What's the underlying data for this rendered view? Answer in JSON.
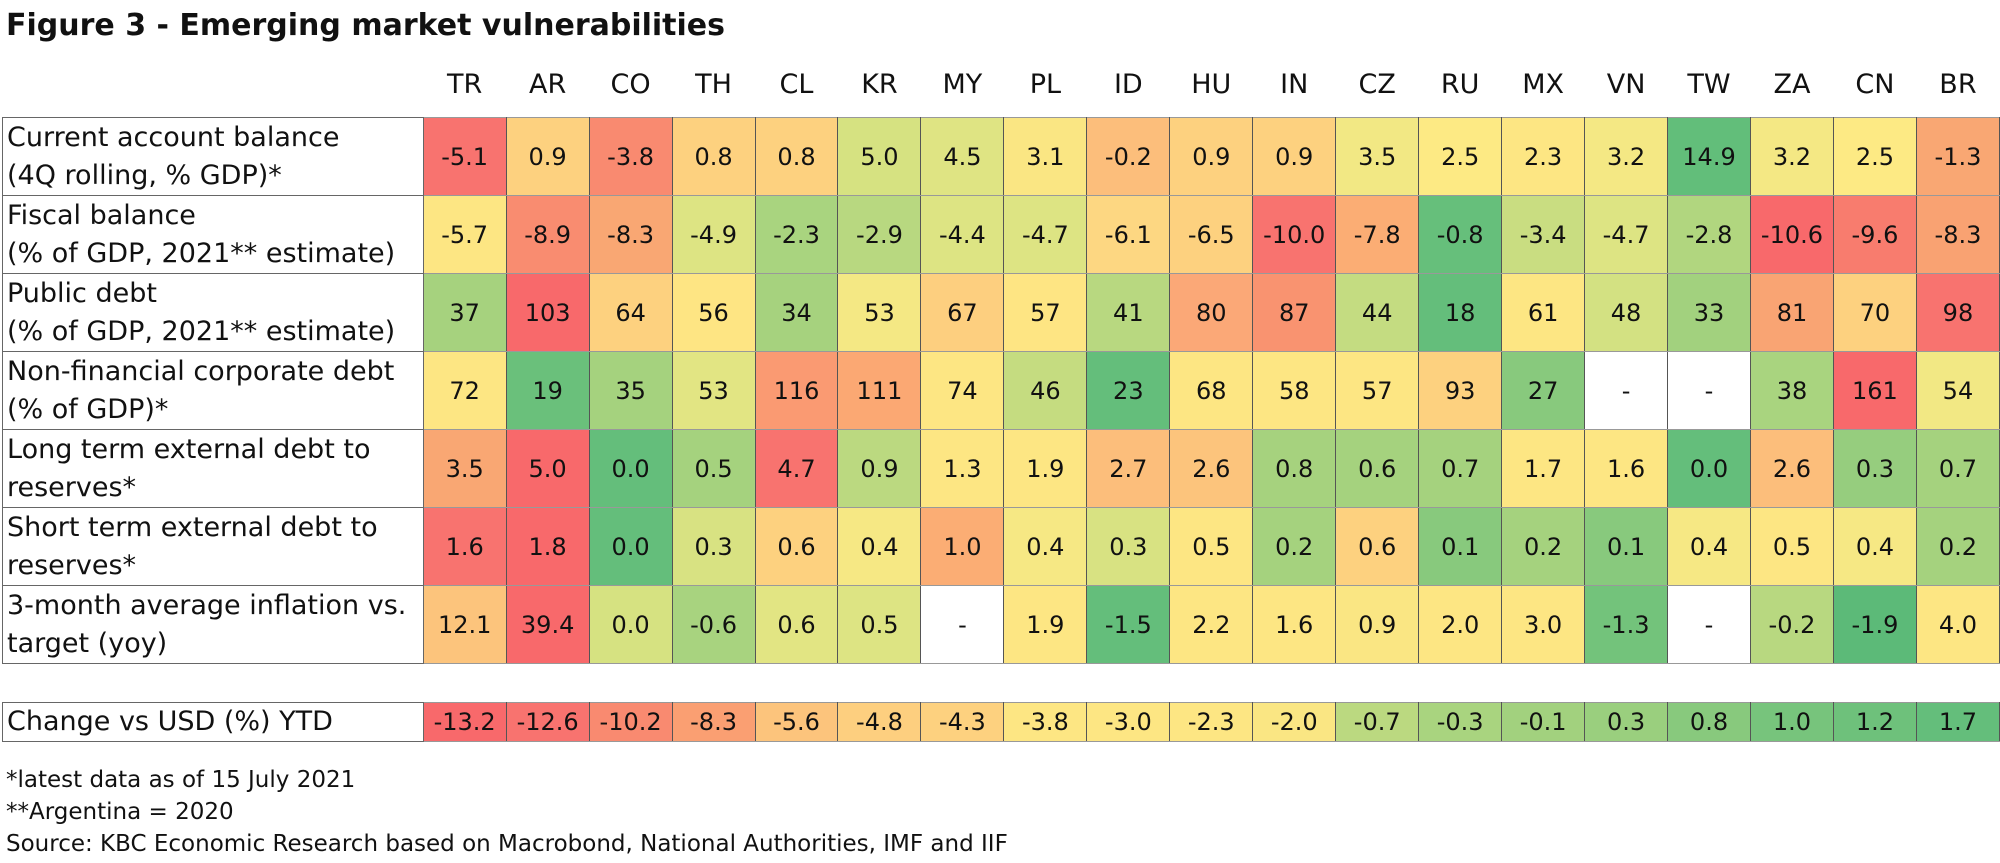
{
  "title": "Figure 3 - Emerging market vulnerabilities",
  "chart_data": {
    "type": "heatmap",
    "title": "Figure 3 - Emerging market vulnerabilities",
    "columns": [
      "TR",
      "AR",
      "CO",
      "TH",
      "CL",
      "KR",
      "MY",
      "PL",
      "ID",
      "HU",
      "IN",
      "CZ",
      "RU",
      "MX",
      "VN",
      "TW",
      "ZA",
      "CN",
      "BR"
    ],
    "rows": [
      {
        "label_1": "Current account balance",
        "label_2": "(4Q rolling, % GDP)*",
        "values": [
          "-5.1",
          "0.9",
          "-3.8",
          "0.8",
          "0.8",
          "5.0",
          "4.5",
          "3.1",
          "-0.2",
          "0.9",
          "0.9",
          "3.5",
          "2.5",
          "2.3",
          "3.2",
          "14.9",
          "3.2",
          "2.5",
          "-1.3"
        ],
        "colors": [
          "#f8736f",
          "#fdd17f",
          "#f98a70",
          "#fdd17f",
          "#fdd17f",
          "#d6e281",
          "#dfe483",
          "#fae683",
          "#fcbe7b",
          "#fdd17f",
          "#fdd17f",
          "#f2e884",
          "#fdea84",
          "#fde683",
          "#f4e884",
          "#62be7a",
          "#f4e884",
          "#fdea84",
          "#f9a773"
        ]
      },
      {
        "label_1": "Fiscal balance",
        "label_2": "(% of GDP, 2021** estimate)",
        "values": [
          "-5.7",
          "-8.9",
          "-8.3",
          "-4.9",
          "-2.3",
          "-2.9",
          "-4.4",
          "-4.7",
          "-6.1",
          "-6.5",
          "-10.0",
          "-7.8",
          "-0.8",
          "-3.4",
          "-4.7",
          "-2.8",
          "-10.6",
          "-9.6",
          "-8.3"
        ],
        "colors": [
          "#fde683",
          "#f98c70",
          "#f9a773",
          "#dde483",
          "#a9d47f",
          "#b8d880",
          "#dde483",
          "#dde483",
          "#fdd782",
          "#fdd17f",
          "#f8736f",
          "#fbad74",
          "#66bf7b",
          "#c9dd81",
          "#dde483",
          "#b1d67f",
          "#f8696b",
          "#f87c6e",
          "#f9a272"
        ]
      },
      {
        "label_1": "Public debt",
        "label_2": "(% of GDP, 2021** estimate)",
        "values": [
          "37",
          "103",
          "64",
          "56",
          "34",
          "53",
          "67",
          "57",
          "41",
          "80",
          "87",
          "44",
          "18",
          "61",
          "48",
          "33",
          "81",
          "70",
          "98"
        ],
        "colors": [
          "#a6d27e",
          "#f8696b",
          "#fdd17f",
          "#fee583",
          "#a6d27e",
          "#f4e884",
          "#fdcf7f",
          "#fee583",
          "#b8d880",
          "#fba877",
          "#f99370",
          "#c4dc81",
          "#64be7b",
          "#fde683",
          "#d3e182",
          "#a2d17e",
          "#f9a473",
          "#fdd17f",
          "#f8736f"
        ]
      },
      {
        "label_1": "Non-financial corporate debt",
        "label_2": "(% of GDP)*",
        "values": [
          "72",
          "19",
          "35",
          "53",
          "116",
          "111",
          "74",
          "46",
          "23",
          "68",
          "58",
          "57",
          "93",
          "27",
          "-",
          "-",
          "38",
          "161",
          "54"
        ],
        "colors": [
          "#fde683",
          "#6ac07b",
          "#a5d27e",
          "#e2e583",
          "#fa9a72",
          "#fba873",
          "#fde683",
          "#c5dc80",
          "#64be7b",
          "#fde683",
          "#fde683",
          "#fde683",
          "#fdd17f",
          "#88c97d",
          "#ffffff",
          "#ffffff",
          "#a9d47f",
          "#f8696b",
          "#f2e884"
        ]
      },
      {
        "label_1": "Long term external debt  to",
        "label_2": "reserves*",
        "values": [
          "3.5",
          "5.0",
          "0.0",
          "0.5",
          "4.7",
          "0.9",
          "1.3",
          "1.9",
          "2.7",
          "2.6",
          "0.8",
          "0.6",
          "0.7",
          "1.7",
          "1.6",
          "0.0",
          "2.6",
          "0.3",
          "0.7"
        ],
        "colors": [
          "#f9a773",
          "#f8696b",
          "#64be7b",
          "#a5d27e",
          "#f8736f",
          "#bbd980",
          "#fde683",
          "#fde683",
          "#fcbe7b",
          "#fcc47c",
          "#a6d27e",
          "#a5d27e",
          "#a5d27e",
          "#fde683",
          "#fde683",
          "#64be7b",
          "#fcbe7b",
          "#96cd7e",
          "#a5d27e"
        ]
      },
      {
        "label_1": "Short term external debt  to",
        "label_2": "reserves*",
        "values": [
          "1.6",
          "1.8",
          "0.0",
          "0.3",
          "0.6",
          "0.4",
          "1.0",
          "0.4",
          "0.3",
          "0.5",
          "0.2",
          "0.6",
          "0.1",
          "0.2",
          "0.1",
          "0.4",
          "0.5",
          "0.4",
          "0.2"
        ],
        "colors": [
          "#f8736f",
          "#f8696b",
          "#64be7b",
          "#d8e282",
          "#fdd17f",
          "#f6e884",
          "#fbad74",
          "#f6e884",
          "#d8e282",
          "#fde683",
          "#a5d27e",
          "#fdd17f",
          "#88c97d",
          "#a5d27e",
          "#88c97d",
          "#f6e884",
          "#fde683",
          "#f6e884",
          "#a5d27e"
        ]
      },
      {
        "label_1": "3-month average inflation vs.",
        "label_2": "target (yoy)",
        "values": [
          "12.1",
          "39.4",
          "0.0",
          "-0.6",
          "0.6",
          "0.5",
          "-",
          "1.9",
          "-1.5",
          "2.2",
          "1.6",
          "0.9",
          "2.0",
          "3.0",
          "-1.3",
          "-",
          "-0.2",
          "-1.9",
          "4.0"
        ],
        "colors": [
          "#fcc47c",
          "#f8696b",
          "#d6e281",
          "#a8d37f",
          "#e2e583",
          "#dde483",
          "#ffffff",
          "#fde683",
          "#64be7b",
          "#fde683",
          "#fde683",
          "#fae683",
          "#fde683",
          "#fde683",
          "#73c37b",
          "#ffffff",
          "#b8d880",
          "#5cba78",
          "#fde683"
        ]
      }
    ],
    "summary_row": {
      "label": "Change vs USD (%) YTD",
      "values": [
        "-13.2",
        "-12.6",
        "-10.2",
        "-8.3",
        "-5.6",
        "-4.8",
        "-4.3",
        "-3.8",
        "-3.0",
        "-2.3",
        "-2.0",
        "-0.7",
        "-0.3",
        "-0.1",
        "0.3",
        "0.8",
        "1.0",
        "1.2",
        "1.7"
      ],
      "colors": [
        "#f8696b",
        "#f8736f",
        "#f98a70",
        "#fa9f72",
        "#fcc47c",
        "#fdcf7f",
        "#fdd17f",
        "#fde683",
        "#fde683",
        "#fde683",
        "#fae683",
        "#bbd980",
        "#a9d47f",
        "#a2d17e",
        "#9acf7e",
        "#88c97d",
        "#77c47c",
        "#6ec17b",
        "#64be7b"
      ]
    }
  },
  "footnotes": [
    "*latest data as of 15 July 2021",
    "**Argentina = 2020",
    "Source: KBC Economic Research based on Macrobond, National Authorities, IMF and IIF"
  ]
}
